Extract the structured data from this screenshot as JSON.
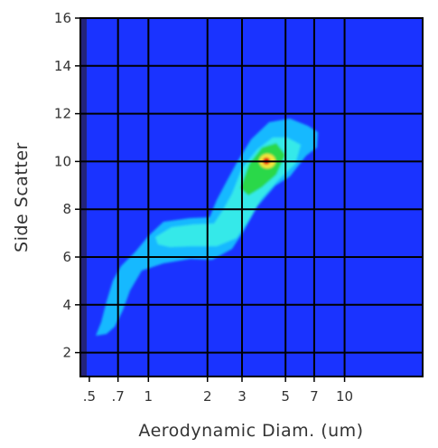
{
  "chart_data": {
    "type": "heatmap",
    "title": "",
    "xlabel": "Aerodynamic Diam. (um)",
    "ylabel": "Side Scatter",
    "x_scale": "log",
    "xlim": [
      0.45,
      25
    ],
    "ylim": [
      1,
      16
    ],
    "x_ticks": [
      0.5,
      0.7,
      1,
      2,
      3,
      5,
      7,
      10
    ],
    "x_tick_labels": [
      ".5",
      ".7",
      "1",
      "2",
      "3",
      "5",
      "7",
      "10"
    ],
    "y_ticks": [
      2,
      4,
      6,
      8,
      10,
      12,
      14,
      16
    ],
    "y_tick_labels": [
      "2",
      "4",
      "6",
      "8",
      "10",
      "12",
      "14",
      "16"
    ],
    "grid": true,
    "colors": {
      "background": "#1a33ff",
      "grid": "#000000",
      "frame": "#000000",
      "levels": [
        "#1a33ff",
        "#17b9ff",
        "#36e9e9",
        "#2ad84a",
        "#f5e53a",
        "#e01010"
      ]
    },
    "density": [
      {
        "x": 0.58,
        "y": 3.0,
        "level": 1
      },
      {
        "x": 0.62,
        "y": 3.6,
        "level": 1
      },
      {
        "x": 0.66,
        "y": 4.3,
        "level": 1
      },
      {
        "x": 0.72,
        "y": 5.0,
        "level": 1
      },
      {
        "x": 0.8,
        "y": 5.6,
        "level": 1
      },
      {
        "x": 0.9,
        "y": 6.0,
        "level": 1
      },
      {
        "x": 1.0,
        "y": 6.5,
        "level": 1
      },
      {
        "x": 1.15,
        "y": 6.9,
        "level": 1
      },
      {
        "x": 1.3,
        "y": 7.2,
        "level": 1
      },
      {
        "x": 1.5,
        "y": 7.0,
        "level": 1
      },
      {
        "x": 1.7,
        "y": 6.9,
        "level": 2
      },
      {
        "x": 2.0,
        "y": 7.2,
        "level": 2
      },
      {
        "x": 2.2,
        "y": 7.8,
        "level": 2
      },
      {
        "x": 2.5,
        "y": 8.6,
        "level": 3
      },
      {
        "x": 2.7,
        "y": 9.4,
        "level": 3
      },
      {
        "x": 3.0,
        "y": 9.8,
        "level": 4
      },
      {
        "x": 3.1,
        "y": 10.0,
        "level": 5
      },
      {
        "x": 3.5,
        "y": 10.5,
        "level": 2
      },
      {
        "x": 4.0,
        "y": 10.8,
        "level": 1
      },
      {
        "x": 5.0,
        "y": 10.9,
        "level": 1
      }
    ]
  }
}
